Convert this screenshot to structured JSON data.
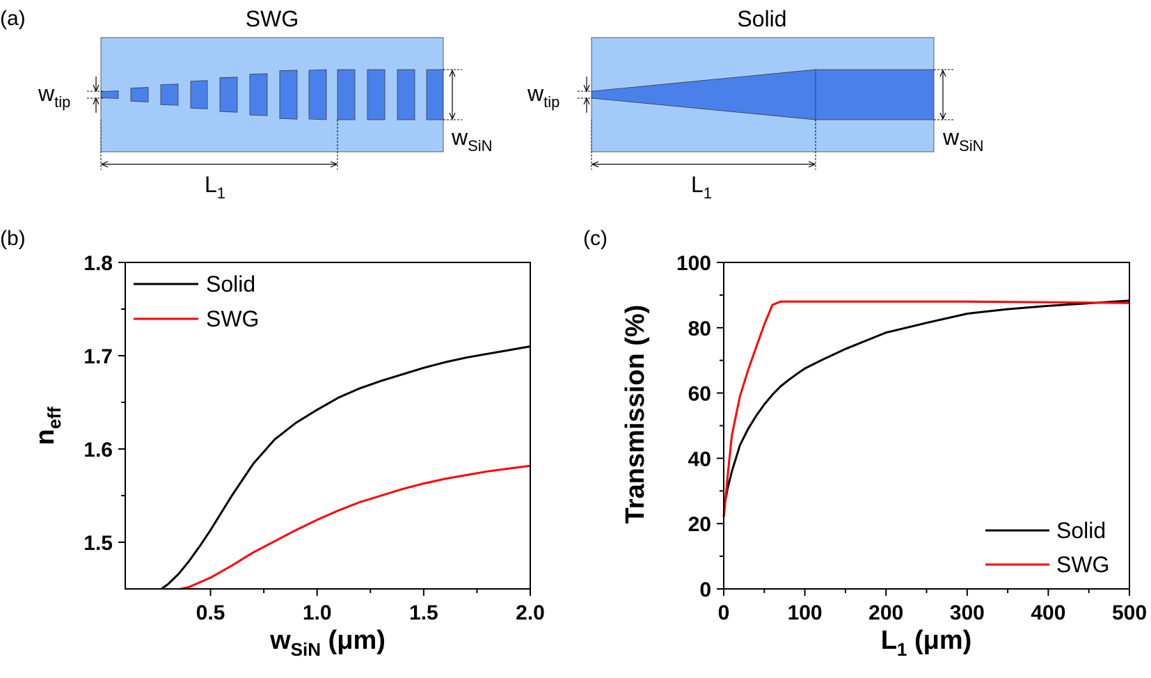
{
  "panel_labels": {
    "a": "(a)",
    "b": "(b)",
    "c": "(c)"
  },
  "schematics": {
    "swg": {
      "title": "SWG",
      "w_tip": "w",
      "w_tip_sub": "tip",
      "w_sin": "w",
      "w_sin_sub": "SiN",
      "l1": "L",
      "l1_sub": "1"
    },
    "solid": {
      "title": "Solid",
      "w_tip": "w",
      "w_tip_sub": "tip",
      "w_sin": "w",
      "w_sin_sub": "SiN",
      "l1": "L",
      "l1_sub": "1"
    },
    "colors": {
      "cladding": "#a3cbfa",
      "core": "#4a80ea",
      "outline": "#5a5a5a"
    }
  },
  "chart_data": [
    {
      "id": "b",
      "type": "line",
      "xlabel": "w",
      "xlabel_sub": "SiN",
      "xlabel_unit": " (μm)",
      "ylabel": "n",
      "ylabel_sub": "eff",
      "xlim": [
        0.1,
        2.0
      ],
      "ylim": [
        1.45,
        1.8
      ],
      "xticks": [
        0.5,
        1.0,
        1.5,
        2.0
      ],
      "xtick_labels": [
        "0.5",
        "1.0",
        "1.5",
        "2.0"
      ],
      "yticks": [
        1.5,
        1.6,
        1.7,
        1.8
      ],
      "ytick_labels": [
        "1.5",
        "1.6",
        "1.7",
        "1.8"
      ],
      "legend": {
        "placement": "top-left"
      },
      "series": [
        {
          "name": "Solid",
          "color": "#000000",
          "x": [
            0.27,
            0.3,
            0.35,
            0.4,
            0.45,
            0.5,
            0.6,
            0.7,
            0.8,
            0.9,
            1.0,
            1.1,
            1.2,
            1.3,
            1.4,
            1.5,
            1.6,
            1.7,
            1.8,
            1.9,
            2.0
          ],
          "y": [
            1.45,
            1.455,
            1.466,
            1.48,
            1.496,
            1.513,
            1.55,
            1.584,
            1.61,
            1.628,
            1.642,
            1.655,
            1.665,
            1.673,
            1.68,
            1.687,
            1.693,
            1.698,
            1.702,
            1.706,
            1.71
          ]
        },
        {
          "name": "SWG",
          "color": "#ff0000",
          "x": [
            0.36,
            0.4,
            0.5,
            0.6,
            0.7,
            0.8,
            0.9,
            1.0,
            1.1,
            1.2,
            1.3,
            1.4,
            1.5,
            1.6,
            1.7,
            1.8,
            1.9,
            2.0
          ],
          "y": [
            1.45,
            1.452,
            1.462,
            1.475,
            1.489,
            1.501,
            1.513,
            1.524,
            1.534,
            1.543,
            1.55,
            1.557,
            1.563,
            1.568,
            1.572,
            1.576,
            1.579,
            1.582
          ]
        }
      ]
    },
    {
      "id": "c",
      "type": "line",
      "xlabel": "L",
      "xlabel_sub": "1",
      "xlabel_unit": " (μm)",
      "ylabel": "Transmission (%)",
      "xlim": [
        0,
        500
      ],
      "ylim": [
        0,
        100
      ],
      "xticks": [
        0,
        100,
        200,
        300,
        400,
        500
      ],
      "xtick_labels": [
        "0",
        "100",
        "200",
        "300",
        "400",
        "500"
      ],
      "yticks": [
        0,
        20,
        40,
        60,
        80,
        100
      ],
      "ytick_labels": [
        "0",
        "20",
        "40",
        "60",
        "80",
        "100"
      ],
      "legend": {
        "placement": "bottom-right"
      },
      "series": [
        {
          "name": "Solid",
          "color": "#000000",
          "x": [
            0,
            2,
            5,
            10,
            15,
            20,
            30,
            40,
            50,
            60,
            70,
            80,
            90,
            100,
            120,
            150,
            200,
            250,
            300,
            350,
            400,
            450,
            500
          ],
          "y": [
            22,
            27,
            31,
            36,
            40,
            44,
            49,
            53,
            56.5,
            59.5,
            62,
            64,
            65.8,
            67.5,
            70,
            73.5,
            78.5,
            81.5,
            84.3,
            85.7,
            86.7,
            87.5,
            88.3
          ]
        },
        {
          "name": "SWG",
          "color": "#ff0000",
          "x": [
            0,
            5,
            10,
            20,
            30,
            40,
            50,
            60,
            70,
            80,
            100,
            200,
            300,
            400,
            500
          ],
          "y": [
            22,
            35,
            47,
            59,
            67,
            74,
            81,
            87,
            88,
            88,
            88,
            88,
            88,
            87.8,
            87.6
          ]
        }
      ]
    }
  ]
}
